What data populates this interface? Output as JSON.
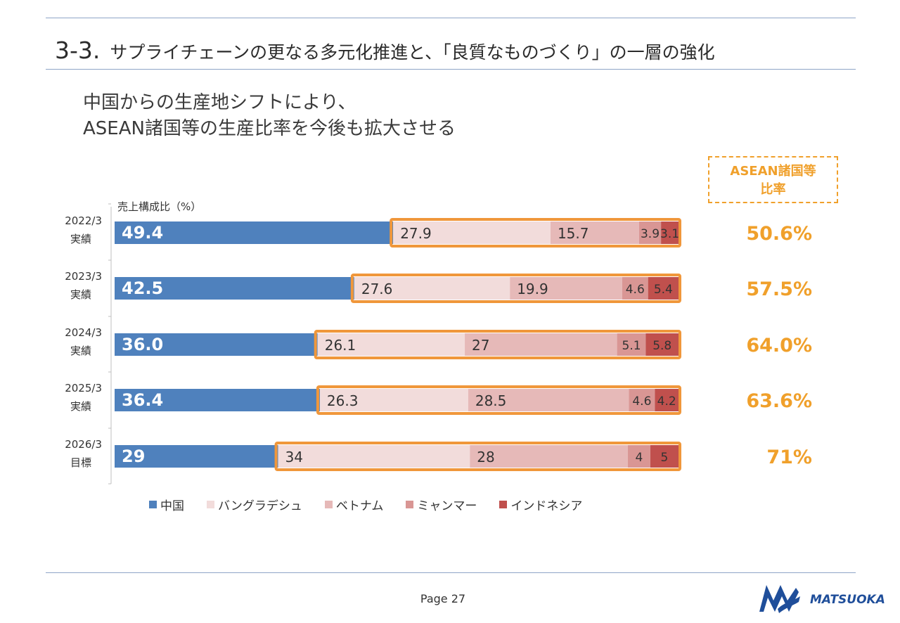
{
  "header": {
    "section_number": "3-3.",
    "title_text": "サプライチェーンの更なる多元化推進と、「良質なものづくり」の一層の強化"
  },
  "subtitle": {
    "line1": "中国からの生産地シフトにより、",
    "line2": "ASEAN諸国等の生産比率を今後も拡大させる"
  },
  "ratio_box": {
    "line1": "ASEAN諸国等",
    "line2": "比率"
  },
  "chart_data": {
    "type": "bar",
    "orientation": "horizontal",
    "stacked": true,
    "unit_label": "売上構成比（%）",
    "categories": [
      [
        "2022/3",
        "実績"
      ],
      [
        "2023/3",
        "実績"
      ],
      [
        "2024/3",
        "実績"
      ],
      [
        "2025/3",
        "実績"
      ],
      [
        "2026/3",
        "目標"
      ]
    ],
    "value_labels": [
      [
        "49.4",
        "27.9",
        "15.7",
        "3.9",
        "3.1"
      ],
      [
        "42.5",
        "27.6",
        "19.9",
        "4.6",
        "5.4"
      ],
      [
        "36.0",
        "26.1",
        "27",
        "5.1",
        "5.8"
      ],
      [
        "36.4",
        "26.3",
        "28.5",
        "4.6",
        "4.2"
      ],
      [
        "29",
        "34",
        "28",
        "4",
        "5"
      ]
    ],
    "series": [
      {
        "name": "中国",
        "color": "#4f81bd",
        "values": [
          49.4,
          42.5,
          36.0,
          36.4,
          29
        ]
      },
      {
        "name": "バングラデシュ",
        "color": "#f2dcdb",
        "values": [
          27.9,
          27.6,
          26.1,
          26.3,
          34
        ]
      },
      {
        "name": "ベトナム",
        "color": "#e6b9b8",
        "values": [
          15.7,
          19.9,
          27,
          28.5,
          28
        ]
      },
      {
        "name": "ミャンマー",
        "color": "#d99694",
        "values": [
          3.9,
          4.6,
          5.1,
          4.6,
          4
        ]
      },
      {
        "name": "インドネシア",
        "color": "#c0504d",
        "values": [
          3.1,
          5.4,
          5.8,
          4.2,
          5
        ]
      }
    ],
    "asean_ratio": [
      "50.6%",
      "57.5%",
      "64.0%",
      "63.6%",
      "71%"
    ],
    "xlim": [
      0,
      100
    ],
    "grid": false,
    "legend_position": "bottom",
    "highlight_color": "#f0973b",
    "ratio_color": "#f0a02b"
  },
  "footer": {
    "page_label": "Page 27",
    "logo_text": "MATSUOKA"
  }
}
